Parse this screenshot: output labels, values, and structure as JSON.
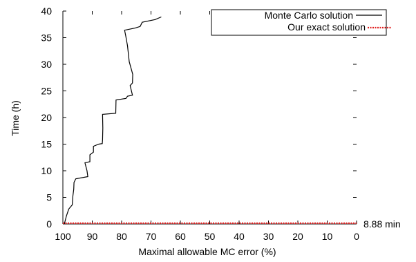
{
  "chart_data": {
    "type": "line",
    "title": "",
    "xlabel": "Maximal allowable MC error (%)",
    "ylabel": "Time (h)",
    "xlim": [
      100,
      0
    ],
    "ylim": [
      0,
      40
    ],
    "x_ticks": [
      100,
      90,
      80,
      70,
      60,
      50,
      40,
      30,
      20,
      10,
      0
    ],
    "y_ticks": [
      0,
      5,
      10,
      15,
      20,
      25,
      30,
      35,
      40
    ],
    "grid": false,
    "legend_position": "top-right",
    "series": [
      {
        "name": "Monte Carlo solution",
        "color": "#000000",
        "style": "solid",
        "points": [
          [
            99.5,
            0.0
          ],
          [
            98.8,
            1.5
          ],
          [
            98.0,
            2.8
          ],
          [
            96.8,
            3.6
          ],
          [
            96.6,
            5.3
          ],
          [
            96.3,
            6.5
          ],
          [
            96.2,
            7.8
          ],
          [
            95.6,
            8.5
          ],
          [
            91.5,
            8.9
          ],
          [
            91.8,
            10.0
          ],
          [
            92.5,
            11.5
          ],
          [
            90.8,
            11.7
          ],
          [
            90.8,
            13.0
          ],
          [
            89.6,
            13.5
          ],
          [
            89.6,
            14.6
          ],
          [
            87.8,
            15.0
          ],
          [
            86.6,
            15.1
          ],
          [
            86.5,
            15.8
          ],
          [
            86.4,
            18.0
          ],
          [
            86.5,
            20.6
          ],
          [
            82.0,
            20.8
          ],
          [
            81.9,
            23.3
          ],
          [
            78.5,
            23.6
          ],
          [
            78.0,
            24.0
          ],
          [
            76.3,
            24.2
          ],
          [
            77.1,
            26.0
          ],
          [
            76.3,
            26.5
          ],
          [
            76.2,
            28.1
          ],
          [
            77.4,
            30.5
          ],
          [
            78.0,
            33.5
          ],
          [
            78.6,
            35.3
          ],
          [
            79.0,
            36.4
          ],
          [
            75.4,
            36.8
          ],
          [
            73.7,
            37.1
          ],
          [
            73.0,
            37.9
          ],
          [
            68.6,
            38.4
          ],
          [
            66.5,
            38.9
          ]
        ]
      },
      {
        "name": "Our exact solution",
        "color": "#e02020",
        "style": "dotted",
        "points": [
          [
            100,
            0.148
          ],
          [
            0,
            0.148
          ]
        ]
      }
    ],
    "annotations": [
      {
        "text": "8.88 min",
        "x": 0,
        "y": 0.148
      }
    ]
  }
}
